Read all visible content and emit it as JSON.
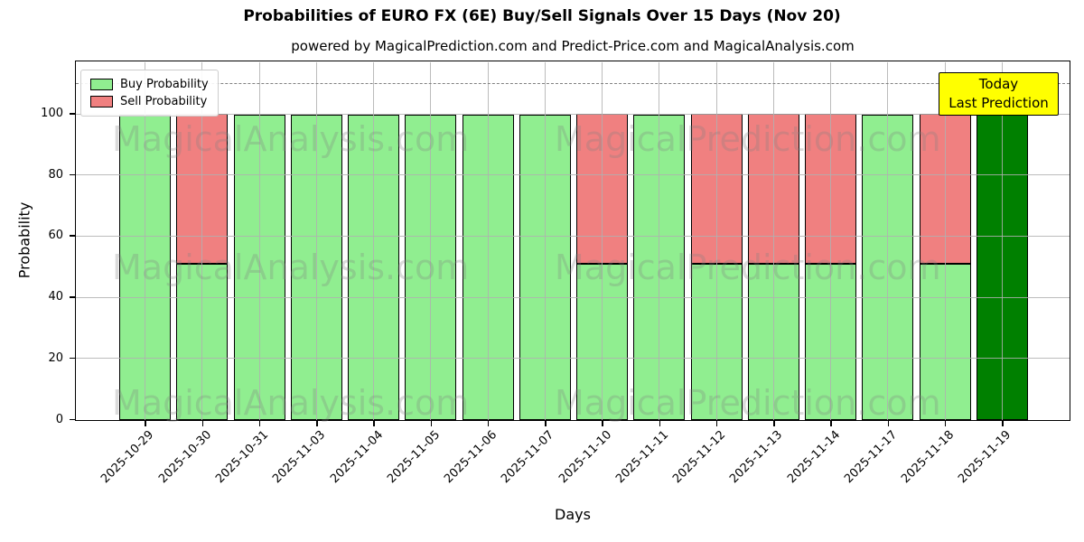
{
  "figure": {
    "title": "Probabilities of EURO FX (6E) Buy/Sell Signals Over 15 Days (Nov 20)",
    "subtitle": "powered by MagicalPrediction.com and Predict-Price.com and MagicalAnalysis.com",
    "xlabel": "Days",
    "ylabel": "Probability"
  },
  "legend": {
    "items": [
      {
        "label": "Buy Probability",
        "color": "#90EE90"
      },
      {
        "label": "Sell Probability",
        "color": "#F08080"
      }
    ]
  },
  "annotation": {
    "line1": "Today",
    "line2": "Last Prediction",
    "bg_color": "#FFFF00"
  },
  "watermark": {
    "texts": [
      "MagicalAnalysis.com",
      "MagicalPrediction.com"
    ],
    "color": "#808080"
  },
  "chart_data": {
    "type": "bar",
    "stacked": true,
    "title": "Probabilities of EURO FX (6E) Buy/Sell Signals Over 15 Days (Nov 20)",
    "subtitle": "powered by MagicalPrediction.com and Predict-Price.com and MagicalAnalysis.com",
    "xlabel": "Days",
    "ylabel": "Probability",
    "categories": [
      "2025-10-29",
      "2025-10-30",
      "2025-10-31",
      "2025-11-03",
      "2025-11-04",
      "2025-11-05",
      "2025-11-06",
      "2025-11-07",
      "2025-11-10",
      "2025-11-11",
      "2025-11-12",
      "2025-11-13",
      "2025-11-14",
      "2025-11-17",
      "2025-11-18",
      "2025-11-19"
    ],
    "series": [
      {
        "name": "Buy Probability",
        "color": "#90EE90",
        "values": [
          100,
          51,
          100,
          100,
          100,
          100,
          100,
          100,
          51,
          100,
          51,
          51,
          51,
          100,
          51,
          100
        ]
      },
      {
        "name": "Sell Probability",
        "color": "#F08080",
        "values": [
          0,
          49,
          0,
          0,
          0,
          0,
          0,
          0,
          49,
          0,
          49,
          49,
          49,
          0,
          49,
          0
        ]
      }
    ],
    "today_bar": {
      "category": "2025-11-19",
      "index": 15,
      "value": 100,
      "color": "#008000"
    },
    "yticks": [
      0,
      20,
      40,
      60,
      80,
      100
    ],
    "ylim": [
      0,
      117
    ],
    "dashed_line_y": 110,
    "grid": true,
    "legend_position": "upper left",
    "bar_edge_color": "#000000",
    "gridline_color": "#b0b0b0",
    "dashed_line_color": "#808080"
  }
}
